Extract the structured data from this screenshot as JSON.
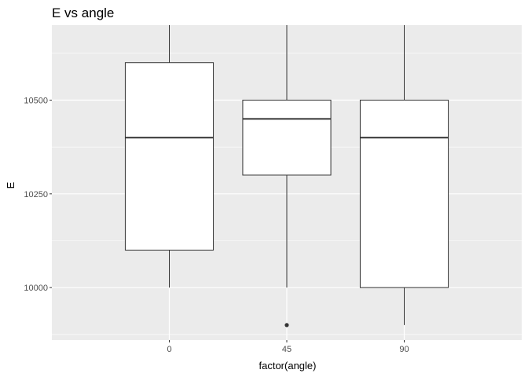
{
  "chart_data": {
    "type": "boxplot",
    "title": "E vs angle",
    "xlabel": "factor(angle)",
    "ylabel": "E",
    "categories": [
      "0",
      "45",
      "90"
    ],
    "ylim": [
      9860,
      10700
    ],
    "yticks": [
      10000,
      10250,
      10500
    ],
    "y_tick_labels": [
      "10000",
      "10250",
      "10500"
    ],
    "grid": true,
    "boxes": [
      {
        "category": "0",
        "lower_whisker": 10000,
        "q1": 10100,
        "median": 10400,
        "q3": 10600,
        "upper_whisker": 10700,
        "outliers": []
      },
      {
        "category": "45",
        "lower_whisker": 10000,
        "q1": 10300,
        "median": 10450,
        "q3": 10500,
        "upper_whisker": 10700,
        "outliers": [
          9900
        ]
      },
      {
        "category": "90",
        "lower_whisker": 9900,
        "q1": 10000,
        "median": 10400,
        "q3": 10500,
        "upper_whisker": 10700,
        "outliers": []
      }
    ],
    "colors": {
      "panel_background": "#ebebeb",
      "grid_major": "#ffffff",
      "box_fill": "#ffffff",
      "box_line": "#333333",
      "point": "#333333"
    }
  }
}
